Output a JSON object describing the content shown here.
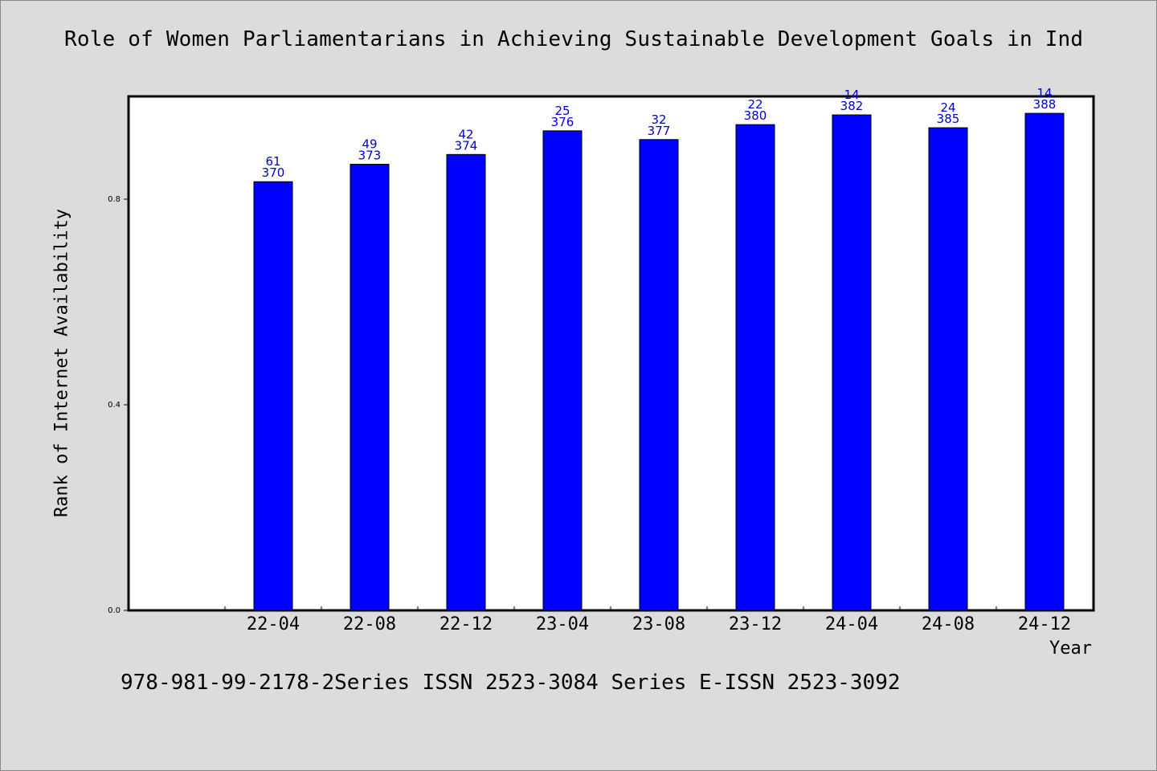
{
  "chart_data": {
    "type": "bar",
    "title": "Role of Women Parliamentarians in Achieving Sustainable Development Goals in Ind",
    "xlabel": "Year",
    "ylabel": "Rank of Internet Availability",
    "categories": [
      "22-04",
      "22-08",
      "22-12",
      "23-04",
      "23-08",
      "23-12",
      "24-04",
      "24-08",
      "24-12"
    ],
    "values": [
      0.834,
      0.868,
      0.887,
      0.933,
      0.916,
      0.945,
      0.964,
      0.939,
      0.967
    ],
    "labels_top": [
      "61",
      "49",
      "42",
      "25",
      "32",
      "22",
      "14",
      "24",
      "14"
    ],
    "labels_bottom": [
      "370",
      "373",
      "374",
      "376",
      "377",
      "380",
      "382",
      "385",
      "388"
    ],
    "yticks": [
      "0.0",
      "0.4",
      "0.8"
    ],
    "ylim": [
      0,
      1.0
    ],
    "bar_color": "#0000ff",
    "label_color": "#0000cc",
    "grid": false,
    "legend": "none"
  },
  "footer": {
    "text": "978-981-99-2178-2Series ISSN 2523-3084 Series E-ISSN 2523-3092"
  }
}
